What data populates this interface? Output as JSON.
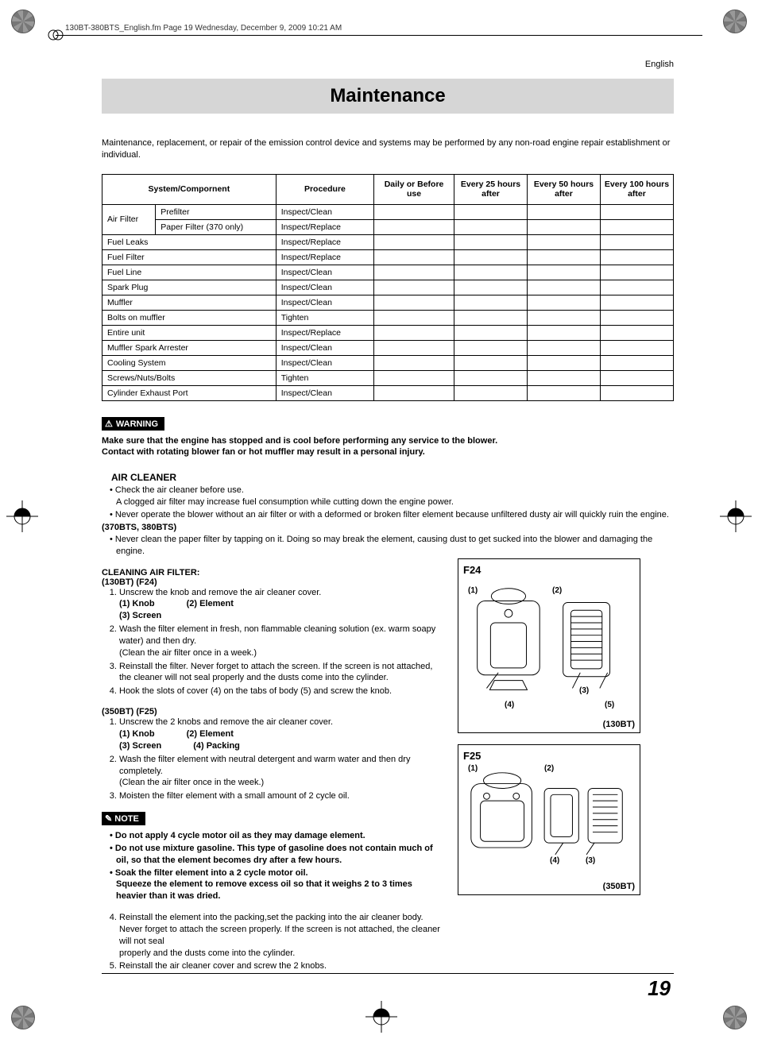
{
  "meta": {
    "header_text": "130BT-380BTS_English.fm  Page 19  Wednesday, December 9, 2009  10:21 AM",
    "language": "English",
    "title": "Maintenance",
    "page_number": "19"
  },
  "intro": "Maintenance, replacement, or repair of the emission control device and systems may be performed by any non-road engine repair establishment or individual.",
  "table": {
    "headers": [
      "System/Compornent",
      "Procedure",
      "Daily or Before use",
      "Every 25 hours after",
      "Every 50 hours after",
      "Every 100 hours after"
    ],
    "rows": [
      {
        "sys_a": "Air Filter",
        "sys_b": "Prefilter",
        "proc": "Inspect/Clean",
        "rowspan": true
      },
      {
        "sys_a": "",
        "sys_b": "Paper Filter (370 only)",
        "proc": "Inspect/Replace"
      },
      {
        "sys": "Fuel Leaks",
        "proc": "Inspect/Replace"
      },
      {
        "sys": "Fuel Filter",
        "proc": "Inspect/Replace"
      },
      {
        "sys": "Fuel Line",
        "proc": "Inspect/Clean"
      },
      {
        "sys": "Spark Plug",
        "proc": "Inspect/Clean"
      },
      {
        "sys": "Muffler",
        "proc": "Inspect/Clean"
      },
      {
        "sys": "Bolts on muffler",
        "proc": "Tighten"
      },
      {
        "sys": "Entire unit",
        "proc": "Inspect/Replace"
      },
      {
        "sys": "Muffler Spark Arrester",
        "proc": "Inspect/Clean"
      },
      {
        "sys": "Cooling System",
        "proc": "Inspect/Clean"
      },
      {
        "sys": "Screws/Nuts/Bolts",
        "proc": "Tighten"
      },
      {
        "sys": "Cylinder Exhaust Port",
        "proc": "Inspect/Clean"
      }
    ],
    "col_widths": [
      "60px",
      "135px",
      "110px",
      "90px",
      "82px",
      "82px",
      "82px"
    ]
  },
  "warning": {
    "label": "WARNING",
    "text": "Make sure that the engine has stopped and is cool before performing any service to the blower. Contact with rotating blower fan or hot muffler may result in a personal injury."
  },
  "air_cleaner": {
    "title": "AIR CLEANER",
    "bullets": [
      "Check the air cleaner before use.\nA clogged air filter may increase fuel consumption while cutting down the engine power.",
      "Never operate the blower without an air filter or with a deformed or broken filter element because unfiltered dusty air will quickly ruin the engine."
    ],
    "model_note": "(370BTS, 380BTS)",
    "bullets2": [
      "Never clean the paper filter by tapping on it. Doing so may break the element, causing dust to get sucked into the blower and damaging the engine."
    ]
  },
  "cleaning": {
    "heading": "CLEANING AIR FILTER:",
    "sec_130": {
      "label": "(130BT) (F24)",
      "steps": [
        "Unscrew the knob and remove the air cleaner cover.",
        "Wash the filter element in fresh, non flammable cleaning solution (ex. warm soapy water) and then dry.\n(Clean the air filter once in a week.)",
        "Reinstall the filter. Never forget to attach the screen. If the screen is not attached, the cleaner will not seal properly and the dusts come into the cylinder.",
        "Hook the slots of cover (4) on the tabs of body (5) and screw the knob."
      ],
      "parts": [
        [
          "(1) Knob",
          "(2) Element"
        ],
        [
          "(3) Screen",
          ""
        ]
      ]
    },
    "sec_350": {
      "label": "(350BT) (F25)",
      "steps": [
        "Unscrew the 2 knobs and remove the air cleaner cover.",
        "Wash the filter element with neutral detergent and warm water and then dry completely.\n(Clean the air filter once in the week.)",
        "Moisten the filter element with a small amount of 2 cycle oil."
      ],
      "parts": [
        [
          "(1) Knob",
          "(2) Element"
        ],
        [
          "(3) Screen",
          "(4) Packing"
        ]
      ],
      "steps2": [
        "Reinstall the element into the packing,set the packing into the air cleaner body. Never forget to attach the screen properly. If the screen is not attached, the cleaner will not seal\nproperly and the dusts come into the cylinder.",
        "Reinstall the air cleaner cover and screw the 2 knobs."
      ]
    }
  },
  "note": {
    "label": "NOTE",
    "bullets": [
      "Do not apply 4 cycle motor oil as they may damage element.",
      "Do not use mixture gasoline. This type of gasoline does not contain much of oil, so that the element becomes dry after a few hours.",
      "Soak the filter element into a 2 cycle motor oil.\nSqueeze the element to remove excess oil so that it weighs 2 to 3 times heavier than it was dried."
    ]
  },
  "figures": {
    "f24": {
      "label": "F24",
      "model": "(130BT)",
      "callouts": [
        "(1)",
        "(2)",
        "(3)",
        "(4)",
        "(5)"
      ]
    },
    "f25": {
      "label": "F25",
      "model": "(350BT)",
      "callouts": [
        "(1)",
        "(2)",
        "(3)",
        "(4)"
      ]
    }
  },
  "colors": {
    "title_bg": "#d6d6d6",
    "text": "#000000",
    "bg": "#ffffff"
  }
}
